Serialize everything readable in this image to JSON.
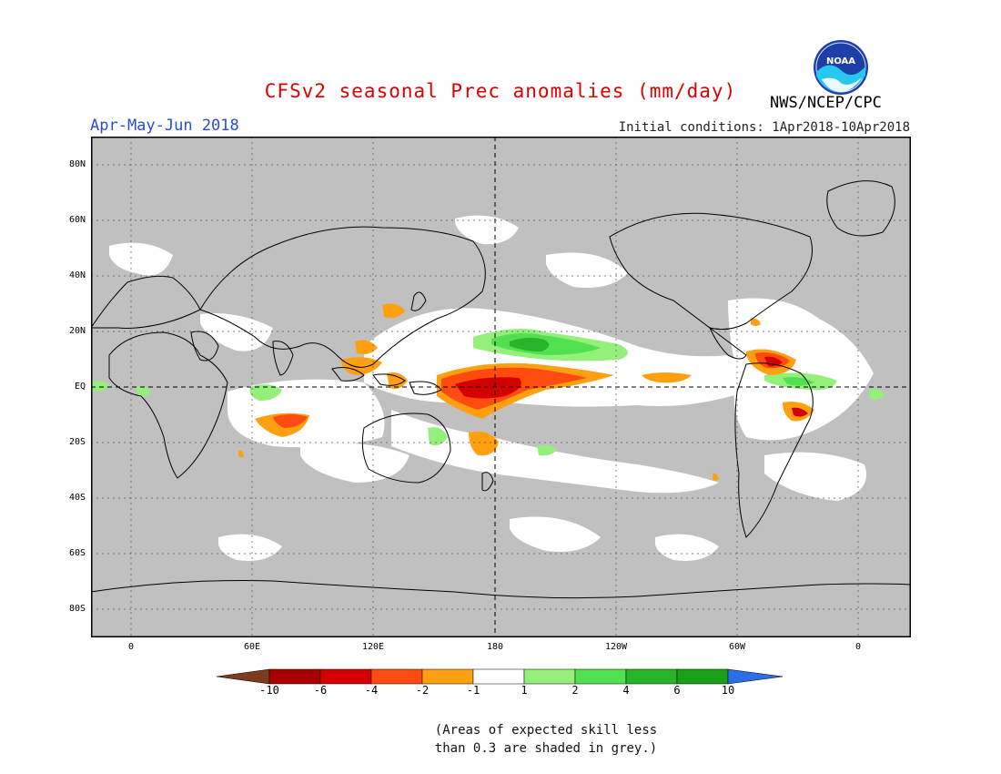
{
  "header": {
    "title": "CFSv2 seasonal Prec anomalies (mm/day)",
    "season": "Apr-May-Jun 2018",
    "agency": "NWS/NCEP/CPC",
    "initial_conditions": "Initial conditions: 1Apr2018-10Apr2018",
    "logo_text": "NOAA"
  },
  "map": {
    "lat_labels": [
      "80N",
      "60N",
      "40N",
      "20N",
      "EQ",
      "20S",
      "40S",
      "60S",
      "80S"
    ],
    "lon_labels": [
      "0",
      "60E",
      "120E",
      "180",
      "120W",
      "60W",
      "0"
    ],
    "colors": {
      "skill_grey": "#c0c0c0",
      "ocean_white": "#ffffff",
      "frame": "#000000"
    }
  },
  "colorbar": {
    "labels": [
      "-10",
      "-6",
      "-4",
      "-2",
      "-1",
      "1",
      "2",
      "4",
      "6",
      "10"
    ],
    "colors": [
      "#7a3b1e",
      "#a80000",
      "#d40000",
      "#ff4a10",
      "#ffa010",
      "#ffffff",
      "#94f07a",
      "#50e050",
      "#28b428",
      "#18a018",
      "#2a6ee8"
    ]
  },
  "note": {
    "line1": "(Areas of expected skill less",
    "line2": "than 0.3 are shaded in grey.)"
  }
}
